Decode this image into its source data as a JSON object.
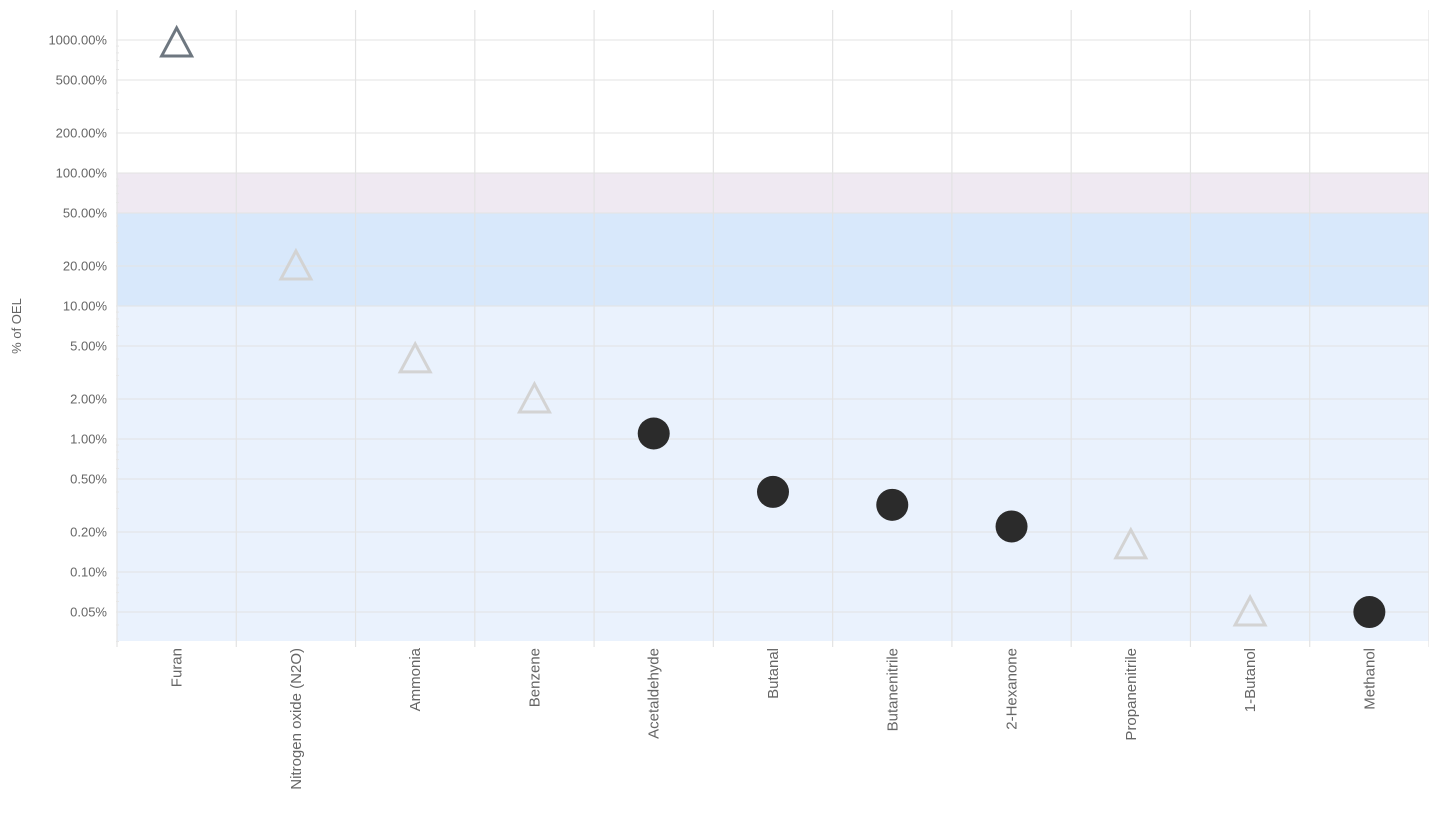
{
  "chart_data": {
    "type": "scatter",
    "ylabel": "% of OEL",
    "yscale": "log",
    "ylim": [
      0.03,
      1500
    ],
    "yticks": [
      {
        "value": 1000,
        "label": "1000.00%"
      },
      {
        "value": 500,
        "label": "500.00%"
      },
      {
        "value": 200,
        "label": "200.00%"
      },
      {
        "value": 100,
        "label": "100.00%"
      },
      {
        "value": 50,
        "label": "50.00%"
      },
      {
        "value": 20,
        "label": "20.00%"
      },
      {
        "value": 10,
        "label": "10.00%"
      },
      {
        "value": 5,
        "label": "5.00%"
      },
      {
        "value": 2,
        "label": "2.00%"
      },
      {
        "value": 1,
        "label": "1.00%"
      },
      {
        "value": 0.5,
        "label": "0.50%"
      },
      {
        "value": 0.2,
        "label": "0.20%"
      },
      {
        "value": 0.1,
        "label": "0.10%"
      },
      {
        "value": 0.05,
        "label": "0.05%"
      }
    ],
    "bands": [
      {
        "from": 50,
        "to": 100,
        "color": "#efe9f2"
      },
      {
        "from": 10,
        "to": 50,
        "color": "#d8e8fb"
      },
      {
        "from": 0.03,
        "to": 10,
        "color": "#eaf2fd"
      }
    ],
    "categories": [
      "Furan",
      "Nitrogen oxide (N2O)",
      "Ammonia",
      "Benzene",
      "Acetaldehyde",
      "Butanal",
      "Butanenitrile",
      "2-Hexanone",
      "Propanenitrile",
      "1-Butanol",
      "Methanol"
    ],
    "points": [
      {
        "category": "Furan",
        "value": 950,
        "marker": "triangle-dark"
      },
      {
        "category": "Nitrogen oxide (N2O)",
        "value": 20,
        "marker": "triangle-light"
      },
      {
        "category": "Ammonia",
        "value": 4,
        "marker": "triangle-light"
      },
      {
        "category": "Benzene",
        "value": 2,
        "marker": "triangle-light"
      },
      {
        "category": "Acetaldehyde",
        "value": 1.1,
        "marker": "circle"
      },
      {
        "category": "Butanal",
        "value": 0.4,
        "marker": "circle"
      },
      {
        "category": "Butanenitrile",
        "value": 0.32,
        "marker": "circle"
      },
      {
        "category": "2-Hexanone",
        "value": 0.22,
        "marker": "circle"
      },
      {
        "category": "Propanenitrile",
        "value": 0.16,
        "marker": "triangle-light"
      },
      {
        "category": "1-Butanol",
        "value": 0.05,
        "marker": "triangle-light"
      },
      {
        "category": "Methanol",
        "value": 0.05,
        "marker": "circle"
      }
    ],
    "colors": {
      "circle": "#2b2b2b",
      "triangle_dark": "#6e7780",
      "triangle_light": "#d3d3d3",
      "grid": "#e3e3e3",
      "text": "#666666"
    }
  }
}
